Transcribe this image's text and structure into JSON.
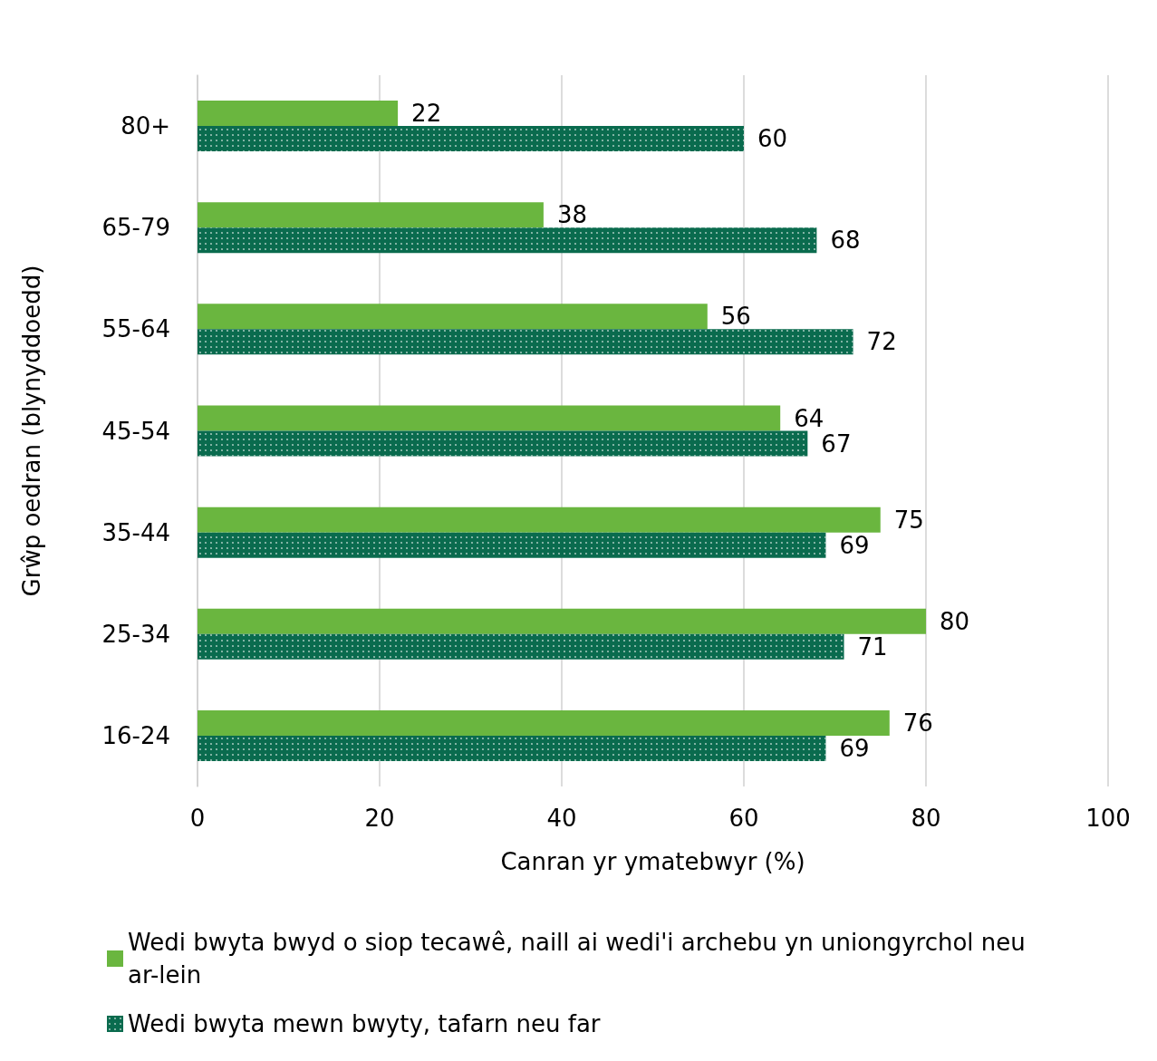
{
  "chart_data": {
    "type": "bar",
    "orientation": "horizontal",
    "xlabel": "Canran yr ymatebwyr (%)",
    "ylabel": "Grŵp oedran (blynyddoedd)",
    "categories": [
      "80+",
      "65-79",
      "55-64",
      "45-54",
      "35-44",
      "25-34",
      "16-24"
    ],
    "series": [
      {
        "name": "Wedi bwyta bwyd o siop tecawê, naill ai wedi'i archebu yn uniongyrchol neu ar-lein",
        "color": "#6ab63f",
        "values": [
          22,
          38,
          56,
          64,
          75,
          80,
          76
        ]
      },
      {
        "name": "Wedi bwyta mewn bwyty, tafarn neu far",
        "color": "#0a6b4e",
        "values": [
          60,
          68,
          72,
          67,
          69,
          71,
          69
        ]
      }
    ],
    "xlim": [
      0,
      100
    ],
    "xticks": [
      0,
      20,
      40,
      60,
      80,
      100
    ],
    "grid": "x",
    "legend": "bottom",
    "data_labels": true
  }
}
